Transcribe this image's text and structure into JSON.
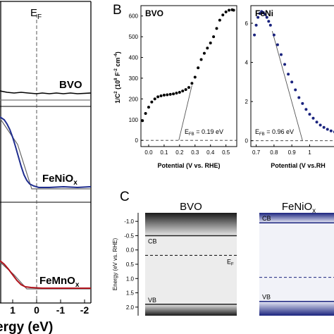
{
  "panel_a": {
    "ef_label": "E",
    "ef_sub": "F",
    "xlabel": "ergy (eV)",
    "x_ticks": [
      "1",
      "0",
      "-1",
      "-2"
    ],
    "sample_labels": [
      "BVO",
      "FeNiO",
      "FeMnO"
    ],
    "label_sub": "x",
    "colors": {
      "bvo": "#000000",
      "feniox": "#1f2d8f",
      "femnox": "#b0131c"
    }
  },
  "panel_b_label": "B",
  "panel_c_label": "C",
  "chart_data": [
    {
      "type": "scatter",
      "panel": "B-left",
      "legend": "BVO",
      "xlabel": "Potential (V vs. RHE)",
      "ylabel": "1/C² (10⁸ F⁻² cm⁻⁴)",
      "ylabel_parts": {
        "base": "1/C",
        "sup1": "2",
        "mid": " (10",
        "sup2": "8",
        "mid2": " F",
        "sup3": "-2",
        "mid3": " cm",
        "sup4": "-4",
        "end": ")"
      },
      "xlim": [
        -0.05,
        0.57
      ],
      "ylim": [
        -30,
        650
      ],
      "x_ticks": [
        0.0,
        0.1,
        0.2,
        0.3,
        0.4,
        0.5
      ],
      "x_tick_labels": [
        "0.0",
        "0.1",
        "0.2",
        "0.3",
        "0.4",
        "0.5"
      ],
      "y_ticks": [
        0,
        100,
        200,
        300,
        400,
        500,
        600
      ],
      "y_tick_labels": [
        "0",
        "100",
        "200",
        "300",
        "400",
        "500",
        "600"
      ],
      "x": [
        -0.04,
        -0.02,
        0.0,
        0.02,
        0.04,
        0.06,
        0.08,
        0.1,
        0.12,
        0.14,
        0.16,
        0.18,
        0.2,
        0.22,
        0.24,
        0.26,
        0.28,
        0.3,
        0.32,
        0.34,
        0.36,
        0.38,
        0.4,
        0.42,
        0.44,
        0.46,
        0.48,
        0.5,
        0.52,
        0.54,
        0.55
      ],
      "y": [
        95,
        130,
        160,
        185,
        200,
        210,
        215,
        218,
        220,
        222,
        224,
        228,
        232,
        238,
        245,
        255,
        275,
        305,
        350,
        390,
        420,
        445,
        470,
        500,
        540,
        580,
        605,
        620,
        628,
        630,
        628
      ],
      "tangent": {
        "x": [
          0.195,
          0.28
        ],
        "y": [
          0,
          265
        ]
      },
      "annotation": {
        "text": "E",
        "sub": "FB",
        "value": " = 0.19 eV"
      },
      "marker_color": "#000000"
    },
    {
      "type": "scatter",
      "panel": "B-right",
      "legend": "FeNi",
      "xlabel": "Potential (V vs.RH",
      "xlim": [
        0.67,
        1.2
      ],
      "ylim": [
        -0.3,
        6.9
      ],
      "x_ticks": [
        0.7,
        0.8,
        0.9,
        1.0
      ],
      "x_tick_labels": [
        "0.7",
        "0.8",
        "0.9",
        "1"
      ],
      "y_ticks": [
        0,
        2,
        4,
        6
      ],
      "y_tick_labels": [
        "0",
        "2",
        "4",
        "6"
      ],
      "x": [
        0.69,
        0.7,
        0.71,
        0.72,
        0.73,
        0.74,
        0.75,
        0.76,
        0.77,
        0.78,
        0.8,
        0.82,
        0.84,
        0.86,
        0.88,
        0.9,
        0.92,
        0.94,
        0.96,
        0.98,
        1.0,
        1.02,
        1.04,
        1.06,
        1.08,
        1.1,
        1.12,
        1.14,
        1.16,
        1.18,
        1.2
      ],
      "y": [
        5.4,
        5.9,
        6.3,
        6.5,
        6.6,
        6.55,
        6.45,
        6.3,
        6.1,
        5.9,
        5.4,
        4.9,
        4.4,
        3.9,
        3.4,
        3.0,
        2.6,
        2.2,
        1.9,
        1.6,
        1.35,
        1.15,
        0.95,
        0.8,
        0.68,
        0.58,
        0.5,
        0.45,
        0.42,
        0.4,
        0.4
      ],
      "tangent": {
        "x": [
          0.79,
          0.96
        ],
        "y": [
          5.6,
          0
        ]
      },
      "annotation": {
        "text": "E",
        "sub": "FB",
        "value": " = 0.96 eV"
      },
      "marker_color": "#1a237e"
    },
    {
      "type": "diagram",
      "panel": "C",
      "ylabel": "Energy (eV vs. RHE)",
      "ylim": [
        -1.3,
        2.3
      ],
      "y_ticks": [
        -1.0,
        -0.5,
        0.0,
        0.5,
        1.0,
        1.5,
        2.0
      ],
      "y_tick_labels": [
        "-1.0",
        "-0.5",
        "0.0",
        "0.5",
        "1.0",
        "1.5",
        "2.0"
      ],
      "columns": [
        {
          "name": "BVO",
          "sub": "",
          "cb": -0.5,
          "vb": 1.9,
          "ef": 0.19,
          "cb_label": "CB",
          "vb_label": "VB",
          "ef_label": "E",
          "ef_sub": "F",
          "color": "#222222"
        },
        {
          "name": "FeNiO",
          "sub": "x",
          "cb": -0.95,
          "vb": 1.8,
          "ef": 0.96,
          "cb_label": "CB",
          "vb_label": "VB",
          "color": "#1a237e"
        }
      ]
    }
  ]
}
